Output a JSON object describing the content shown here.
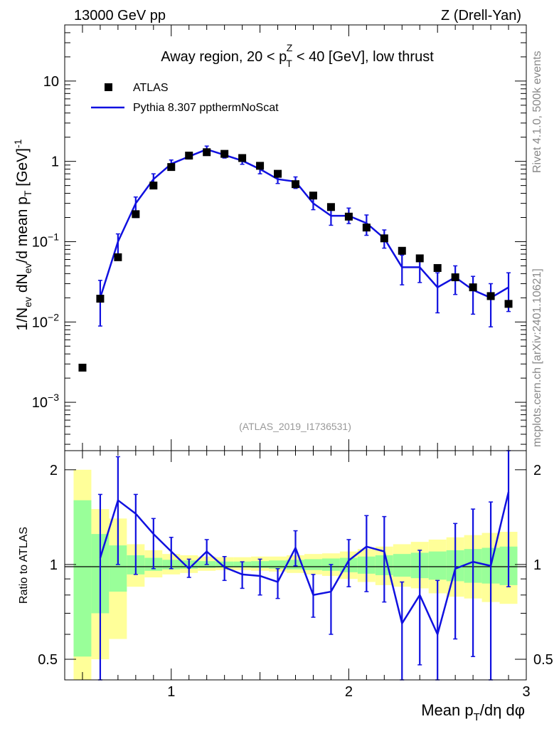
{
  "header": {
    "left": "13000 GeV pp",
    "right": "Z (Drell-Yan)"
  },
  "side_labels": {
    "rivet": "Rivet 4.1.0,  500k events",
    "mcplots": "mcplots.cern.ch [arXiv:2401.10621]"
  },
  "chart_data": [
    {
      "type": "scatter",
      "panel": "main",
      "title": "Away region, 20 < p_T^Z < 40 [GeV], low thrust",
      "title_parts": {
        "pre": "Away region, 20 < p",
        "sub": "T",
        "sup": "Z",
        "post": " < 40 [GeV], low thrust"
      },
      "ylabel": "1/N_ev dN_ev/d mean p_T [GeV]^-1",
      "ylabel_parts": [
        "1/N",
        "ev",
        " dN",
        "ev",
        "/d mean p",
        "T",
        " [GeV]",
        "-1"
      ],
      "xlabel": "Mean p_T/dη dφ",
      "xlabel_parts": [
        "Mean p",
        "T",
        "/dη dφ"
      ],
      "xlim": [
        0.4,
        3.0
      ],
      "ylim": [
        0.00025,
        50
      ],
      "yscale": "log",
      "ytick_labels": [
        "10",
        "1",
        "10^-1",
        "10^-2",
        "10^-3"
      ],
      "legend": [
        "ATLAS",
        "Pythia 8.307 ppthermNoScat"
      ],
      "legend_position": "top-left",
      "watermark": "(ATLAS_2019_I1736531)",
      "series": [
        {
          "name": "ATLAS",
          "style": "markers",
          "color": "#000000",
          "x": [
            0.5,
            0.6,
            0.7,
            0.8,
            0.9,
            1.0,
            1.1,
            1.2,
            1.3,
            1.4,
            1.5,
            1.6,
            1.7,
            1.8,
            1.9,
            2.0,
            2.1,
            2.2,
            2.3,
            2.4,
            2.5,
            2.6,
            2.7,
            2.8,
            2.9
          ],
          "y": [
            0.0027,
            0.0195,
            0.064,
            0.22,
            0.5,
            0.85,
            1.18,
            1.3,
            1.24,
            1.1,
            0.88,
            0.7,
            0.52,
            0.375,
            0.27,
            0.205,
            0.15,
            0.11,
            0.077,
            0.062,
            0.047,
            0.036,
            0.027,
            0.021,
            0.0168
          ]
        },
        {
          "name": "Pythia 8.307 ppthermNoScat",
          "style": "line",
          "color": "#1010e0",
          "x": [
            0.6,
            0.7,
            0.8,
            0.9,
            1.0,
            1.1,
            1.2,
            1.3,
            1.4,
            1.5,
            1.6,
            1.7,
            1.8,
            1.9,
            2.0,
            2.1,
            2.2,
            2.3,
            2.4,
            2.5,
            2.6,
            2.7,
            2.8,
            2.9
          ],
          "y": [
            0.02,
            0.1,
            0.3,
            0.6,
            0.93,
            1.15,
            1.41,
            1.2,
            1.02,
            0.8,
            0.6,
            0.56,
            0.3,
            0.21,
            0.21,
            0.17,
            0.11,
            0.048,
            0.048,
            0.027,
            0.036,
            0.025,
            0.02,
            0.027
          ],
          "err_low": [
            0.0089,
            0.06,
            0.2,
            0.49,
            0.82,
            1.07,
            1.28,
            1.1,
            0.92,
            0.7,
            0.53,
            0.46,
            0.25,
            0.16,
            0.168,
            0.12,
            0.083,
            0.029,
            0.031,
            0.013,
            0.022,
            0.0125,
            0.0087,
            0.0135
          ],
          "err_high": [
            0.033,
            0.125,
            0.36,
            0.7,
            1.04,
            1.24,
            1.55,
            1.31,
            1.13,
            0.9,
            0.68,
            0.64,
            0.35,
            0.26,
            0.262,
            0.215,
            0.14,
            0.068,
            0.068,
            0.041,
            0.05,
            0.037,
            0.03,
            0.041
          ]
        }
      ]
    },
    {
      "type": "line",
      "panel": "ratio",
      "ylabel": "Ratio to ATLAS",
      "xlabel": "Mean p_T/dη dφ",
      "xlim": [
        0.4,
        3.0
      ],
      "ylim": [
        0.43,
        2.3
      ],
      "xtick_labels": [
        "1",
        "2",
        "3"
      ],
      "ytick_labels": [
        "0.5",
        "1",
        "2"
      ],
      "bands": {
        "x_edges": [
          0.45,
          0.55,
          0.65,
          0.75,
          0.85,
          0.95,
          1.05,
          1.15,
          1.25,
          1.35,
          1.45,
          1.55,
          1.65,
          1.75,
          1.85,
          1.95,
          2.05,
          2.15,
          2.25,
          2.35,
          2.45,
          2.55,
          2.65,
          2.75,
          2.85,
          2.95
        ],
        "yellow_low": [
          0.3,
          0.5,
          0.58,
          0.85,
          0.91,
          0.93,
          0.94,
          0.955,
          0.96,
          0.96,
          0.955,
          0.95,
          0.94,
          0.93,
          0.92,
          0.9,
          0.88,
          0.86,
          0.85,
          0.84,
          0.81,
          0.79,
          0.78,
          0.76,
          0.75
        ],
        "yellow_high": [
          2.0,
          1.5,
          1.4,
          1.16,
          1.11,
          1.08,
          1.07,
          1.06,
          1.055,
          1.055,
          1.06,
          1.06,
          1.07,
          1.08,
          1.085,
          1.1,
          1.12,
          1.14,
          1.16,
          1.18,
          1.2,
          1.22,
          1.24,
          1.26,
          1.27
        ],
        "green_low": [
          0.51,
          0.7,
          0.82,
          0.93,
          0.955,
          0.965,
          0.97,
          0.975,
          0.978,
          0.978,
          0.975,
          0.97,
          0.965,
          0.96,
          0.955,
          0.945,
          0.935,
          0.925,
          0.915,
          0.905,
          0.895,
          0.885,
          0.875,
          0.87,
          0.86
        ],
        "green_high": [
          1.6,
          1.25,
          1.15,
          1.07,
          1.05,
          1.035,
          1.03,
          1.025,
          1.022,
          1.022,
          1.025,
          1.03,
          1.035,
          1.04,
          1.045,
          1.05,
          1.06,
          1.07,
          1.08,
          1.09,
          1.1,
          1.11,
          1.12,
          1.13,
          1.14
        ]
      },
      "series": [
        {
          "name": "Pythia 8.307 ppthermNoScat / ATLAS",
          "color": "#1010e0",
          "x": [
            0.6,
            0.7,
            0.8,
            0.9,
            1.0,
            1.1,
            1.2,
            1.3,
            1.4,
            1.5,
            1.6,
            1.7,
            1.8,
            1.9,
            2.0,
            2.1,
            2.2,
            2.3,
            2.4,
            2.5,
            2.6,
            2.7,
            2.8,
            2.9
          ],
          "y": [
            1.05,
            1.6,
            1.45,
            1.25,
            1.1,
            0.97,
            1.1,
            0.98,
            0.93,
            0.92,
            0.88,
            1.13,
            0.8,
            0.82,
            1.03,
            1.14,
            1.1,
            0.65,
            0.8,
            0.6,
            0.97,
            1.02,
            0.99,
            1.7
          ],
          "err_low": [
            0.43,
            1.0,
            0.93,
            0.97,
            0.97,
            0.91,
            1.0,
            0.89,
            0.84,
            0.8,
            0.78,
            0.99,
            0.68,
            0.6,
            0.85,
            0.82,
            0.76,
            0.38,
            0.48,
            0.3,
            0.58,
            0.51,
            0.43,
            0.85
          ],
          "err_high": [
            1.67,
            2.2,
            1.67,
            1.4,
            1.22,
            1.04,
            1.2,
            1.06,
            1.02,
            1.04,
            0.97,
            1.28,
            0.93,
            1.0,
            1.2,
            1.43,
            1.42,
            0.88,
            1.11,
            0.89,
            1.35,
            1.5,
            1.58,
            2.5
          ]
        }
      ]
    }
  ]
}
